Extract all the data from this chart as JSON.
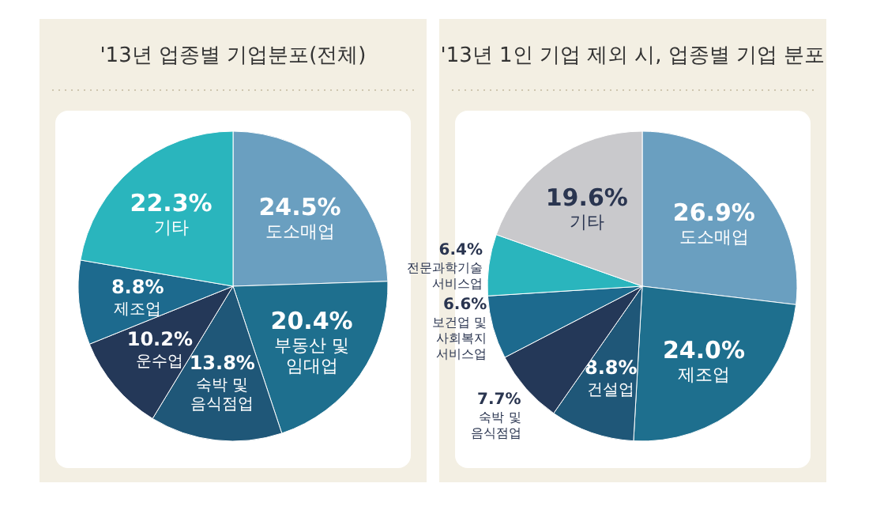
{
  "chart_data": [
    {
      "type": "pie",
      "title": "'13년 업종별 기업분포(전체)",
      "categories": [
        "도소매업",
        "부동산 및\n임대업",
        "숙박 및\n음식점업",
        "운수업",
        "제조업",
        "기타"
      ],
      "values": [
        24.5,
        20.4,
        13.8,
        10.2,
        8.8,
        22.3
      ],
      "value_labels": [
        "24.5%",
        "20.4%",
        "13.8%",
        "10.2%",
        "8.8%",
        "22.3%"
      ],
      "colors": [
        "#6a9fc0",
        "#1e6f8e",
        "#1f5778",
        "#243858",
        "#1d6a8e",
        "#2ab5bd"
      ]
    },
    {
      "type": "pie",
      "title": "'13년 1인 기업 제외 시, 업종별 기업 분포",
      "categories": [
        "도소매업",
        "제조업",
        "건설업",
        "숙박 및\n음식점업",
        "보건업 및\n사회복지\n서비스업",
        "전문과학기술\n서비스업",
        "기타"
      ],
      "values": [
        26.9,
        24.0,
        8.8,
        7.7,
        6.6,
        6.4,
        19.6
      ],
      "value_labels": [
        "26.9%",
        "24.0%",
        "8.8%",
        "7.7%",
        "6.6%",
        "6.4%",
        "19.6%"
      ],
      "colors": [
        "#6a9fc0",
        "#1e6f8e",
        "#1f5778",
        "#243858",
        "#1d6a8e",
        "#2ab5bd",
        "#c9c9cc"
      ]
    }
  ]
}
